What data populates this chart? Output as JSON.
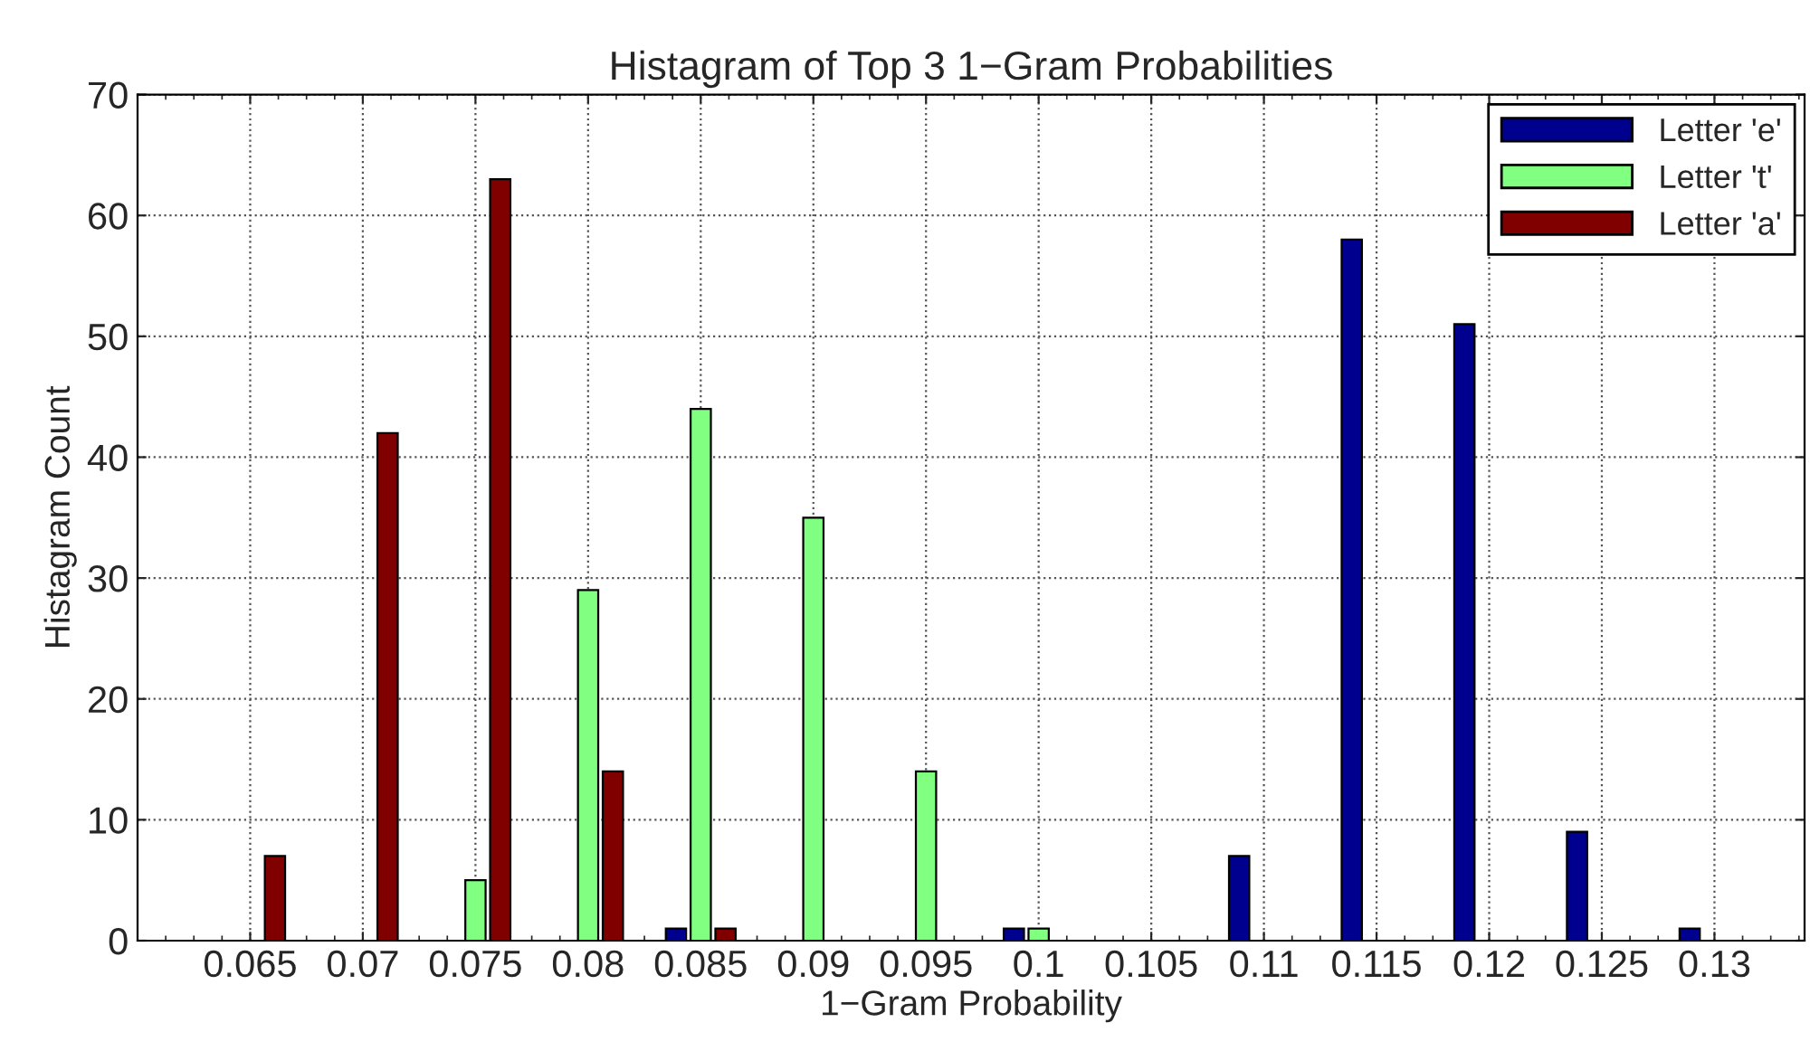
{
  "chart_data": {
    "type": "bar",
    "title": "Histagram of Top 3 1−Gram Probabilities",
    "xlabel": "1−Gram Probability",
    "ylabel": "Histagram Count",
    "xlim": [
      0.06,
      0.134
    ],
    "xticks": [
      0.065,
      0.07,
      0.075,
      0.08,
      0.085,
      0.09,
      0.095,
      0.1,
      0.105,
      0.11,
      0.115,
      0.12,
      0.125,
      0.13
    ],
    "ylim": [
      0,
      70
    ],
    "yticks": [
      0,
      10,
      20,
      30,
      40,
      50,
      60,
      70
    ],
    "grid": true,
    "legend": "top right",
    "series": [
      {
        "name": "Letter 'e'",
        "color": "#00008f",
        "x": [
          0.0839,
          0.0989,
          0.1089,
          0.1139,
          0.1189,
          0.1239,
          0.1289
        ],
        "values": [
          1,
          1,
          7,
          58,
          51,
          9,
          1
        ]
      },
      {
        "name": "Letter 't'",
        "color": "#80ff80",
        "x": [
          0.075,
          0.08,
          0.085,
          0.09,
          0.095,
          0.1
        ],
        "values": [
          5,
          29,
          44,
          35,
          14,
          1
        ]
      },
      {
        "name": "Letter 'a'",
        "color": "#800000",
        "x": [
          0.0661,
          0.0711,
          0.0761,
          0.0811,
          0.0861
        ],
        "values": [
          7,
          42,
          63,
          14,
          1
        ]
      }
    ]
  }
}
